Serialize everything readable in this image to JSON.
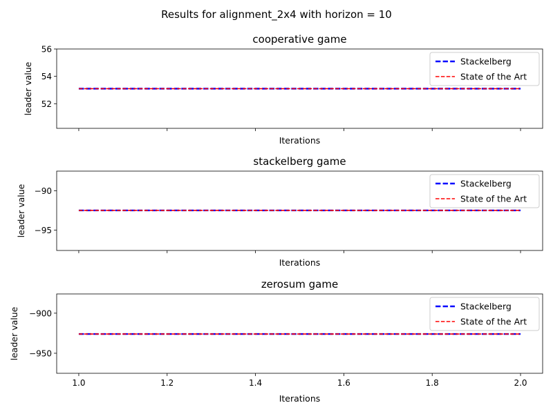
{
  "suptitle": "Results for alignment_2x4 with horizon = 10",
  "chart_data": [
    {
      "type": "line",
      "title": "cooperative game",
      "xlabel": "Iterations",
      "ylabel": "leader value",
      "xlim": [
        0.95,
        2.05
      ],
      "ylim": [
        50.2,
        56
      ],
      "yticks": [
        52,
        54,
        56
      ],
      "xticks": [
        1.0,
        1.2,
        1.4,
        1.6,
        1.8,
        2.0
      ],
      "show_xtick_labels": false,
      "legend": "top-right",
      "grid": false,
      "series": [
        {
          "name": "Stackelberg",
          "color": "#0000ff",
          "dash": "dashed-wide",
          "x": [
            1.0,
            2.0
          ],
          "y": [
            53.1,
            53.1
          ]
        },
        {
          "name": "State of the Art",
          "color": "#ff0000",
          "dash": "dashed",
          "x": [
            1.0,
            2.0
          ],
          "y": [
            53.1,
            53.1
          ]
        }
      ]
    },
    {
      "type": "line",
      "title": "stackelberg game",
      "xlabel": "Iterations",
      "ylabel": "leader value",
      "xlim": [
        0.95,
        2.05
      ],
      "ylim": [
        -97.6,
        -87.5
      ],
      "yticks": [
        -90,
        -95
      ],
      "ytick_labels": [
        "−90",
        "−95"
      ],
      "xticks": [
        1.0,
        1.2,
        1.4,
        1.6,
        1.8,
        2.0
      ],
      "show_xtick_labels": false,
      "legend": "top-right",
      "grid": false,
      "series": [
        {
          "name": "Stackelberg",
          "color": "#0000ff",
          "dash": "dashed-wide",
          "x": [
            1.0,
            2.0
          ],
          "y": [
            -92.5,
            -92.5
          ]
        },
        {
          "name": "State of the Art",
          "color": "#ff0000",
          "dash": "dashed",
          "x": [
            1.0,
            2.0
          ],
          "y": [
            -92.5,
            -92.5
          ]
        }
      ]
    },
    {
      "type": "line",
      "title": "zerosum game",
      "xlabel": "Iterations",
      "ylabel": "leader value",
      "xlim": [
        0.95,
        2.05
      ],
      "ylim": [
        -975,
        -876
      ],
      "yticks": [
        -900,
        -950
      ],
      "ytick_labels": [
        "−900",
        "−950"
      ],
      "xticks": [
        1.0,
        1.2,
        1.4,
        1.6,
        1.8,
        2.0
      ],
      "xtick_labels": [
        "1.0",
        "1.2",
        "1.4",
        "1.6",
        "1.8",
        "2.0"
      ],
      "show_xtick_labels": true,
      "legend": "top-right",
      "grid": false,
      "series": [
        {
          "name": "Stackelberg",
          "color": "#0000ff",
          "dash": "dashed-wide",
          "x": [
            1.0,
            2.0
          ],
          "y": [
            -926,
            -926
          ]
        },
        {
          "name": "State of the Art",
          "color": "#ff0000",
          "dash": "dashed",
          "x": [
            1.0,
            2.0
          ],
          "y": [
            -926,
            -926
          ]
        }
      ]
    }
  ]
}
